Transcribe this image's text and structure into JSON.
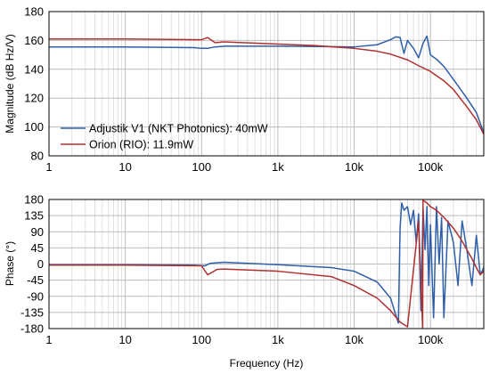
{
  "chart_data": [
    {
      "type": "line",
      "id": "magnitude",
      "ylabel": "Magnitude (dB Hz/V)",
      "xlabel": "",
      "xscale": "log",
      "xlim": [
        1,
        500000
      ],
      "ylim": [
        80,
        180
      ],
      "x_ticks": [
        1,
        10,
        100,
        1000,
        10000,
        100000
      ],
      "x_tick_labels": [
        "1",
        "10",
        "100",
        "1k",
        "10k",
        "100k"
      ],
      "y_ticks": [
        80,
        100,
        120,
        140,
        160,
        180
      ],
      "y_tick_labels": [
        "80",
        "100",
        "120",
        "140",
        "160",
        "180"
      ],
      "grid": true,
      "legend": {
        "placement": "bottom-left",
        "entries": [
          "Adjustik V1 (NKT Photonics): 40mW",
          "Orion (RIO): 11.9mW"
        ]
      },
      "series": [
        {
          "name": "Adjustik V1 (NKT Photonics): 40mW",
          "color": "#2e5fa8",
          "x": [
            1,
            10,
            80,
            100,
            120,
            150,
            200,
            1000,
            10000,
            20000,
            30000,
            35000,
            40000,
            45000,
            50000,
            60000,
            70000,
            80000,
            90000,
            100000,
            120000,
            150000,
            200000,
            300000,
            400000,
            500000
          ],
          "y": [
            155.5,
            155.5,
            155.0,
            154.5,
            154.5,
            155.5,
            156.0,
            156.0,
            155.5,
            157.0,
            160.5,
            162.5,
            162.0,
            151.0,
            160.0,
            154.5,
            148.0,
            158.0,
            163.0,
            150.0,
            147.0,
            142.0,
            133.0,
            120.0,
            110.0,
            96.0
          ]
        },
        {
          "name": "Orion (RIO): 11.9mW",
          "color": "#b03030",
          "x": [
            1,
            10,
            100,
            120,
            150,
            200,
            1000,
            3000,
            10000,
            20000,
            30000,
            50000,
            70000,
            100000,
            150000,
            200000,
            300000,
            400000,
            500000
          ],
          "y": [
            161.0,
            161.0,
            160.5,
            162.0,
            158.5,
            159.0,
            157.5,
            156.5,
            154.5,
            152.5,
            150.5,
            146.5,
            142.5,
            138.5,
            132.0,
            126.0,
            114.0,
            105.0,
            95.0
          ]
        }
      ]
    },
    {
      "type": "line",
      "id": "phase",
      "ylabel": "Phase (°)",
      "xlabel": "Frequency (Hz)",
      "xscale": "log",
      "xlim": [
        1,
        500000
      ],
      "ylim": [
        -180,
        180
      ],
      "x_ticks": [
        1,
        10,
        100,
        1000,
        10000,
        100000
      ],
      "x_tick_labels": [
        "1",
        "10",
        "100",
        "1k",
        "10k",
        "100k"
      ],
      "y_ticks": [
        -180,
        -135,
        -90,
        -45,
        0,
        45,
        90,
        135,
        180
      ],
      "y_tick_labels": [
        "-180",
        "-135",
        "-90",
        "-45",
        "0",
        "45",
        "90",
        "135",
        "180"
      ],
      "grid": true,
      "series": [
        {
          "name": "Adjustik V1 (NKT Photonics): 40mW",
          "color": "#2e5fa8",
          "x": [
            1,
            10,
            80,
            110,
            130,
            150,
            200,
            1000,
            5000,
            10000,
            20000,
            30000,
            38000,
            40000,
            42000,
            45000,
            50000,
            55000,
            60000,
            65000,
            70000,
            75000,
            80000,
            85000,
            90000,
            95000,
            100000,
            110000,
            120000,
            130000,
            140000,
            150000,
            170000,
            200000,
            230000,
            260000,
            300000,
            350000,
            400000,
            450000,
            500000
          ],
          "y": [
            -2,
            -2,
            -3,
            -5,
            2,
            3,
            5,
            -2,
            -10,
            -20,
            -50,
            -95,
            -165,
            100,
            170,
            150,
            160,
            110,
            150,
            60,
            140,
            -130,
            155,
            40,
            160,
            -60,
            110,
            -150,
            160,
            0,
            130,
            -150,
            120,
            60,
            -60,
            120,
            40,
            -60,
            80,
            -30,
            -10
          ]
        },
        {
          "name": "Orion (RIO): 11.9mW",
          "color": "#b03030",
          "x": [
            1,
            10,
            100,
            120,
            140,
            160,
            200,
            1000,
            5000,
            10000,
            20000,
            30000,
            40000,
            50000,
            70000,
            79000,
            80000,
            90000,
            100000,
            120000,
            150000,
            200000,
            250000,
            300000,
            350000,
            400000,
            450000,
            500000
          ],
          "y": [
            -3,
            -3,
            -5,
            -30,
            -22,
            -15,
            -14,
            -20,
            -35,
            -60,
            -95,
            -130,
            -162,
            -175,
            120,
            -178,
            178,
            170,
            160,
            150,
            130,
            100,
            70,
            40,
            15,
            -10,
            -30,
            -20
          ]
        }
      ]
    }
  ]
}
